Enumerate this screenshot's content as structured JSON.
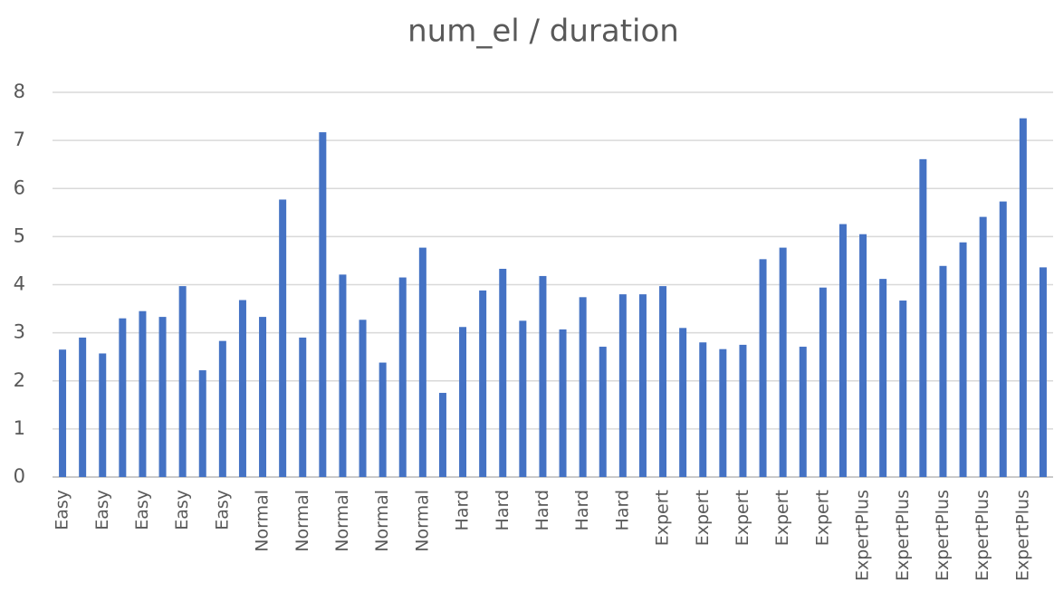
{
  "chart_data": {
    "type": "bar",
    "title": "num_el / duration",
    "categories": [
      "Easy",
      null,
      "Easy",
      null,
      "Easy",
      null,
      "Easy",
      null,
      "Easy",
      null,
      "Normal",
      null,
      "Normal",
      null,
      "Normal",
      null,
      "Normal",
      null,
      "Normal",
      null,
      "Hard",
      null,
      "Hard",
      null,
      "Hard",
      null,
      "Hard",
      null,
      "Hard",
      null,
      "Expert",
      null,
      "Expert",
      null,
      "Expert",
      null,
      "Expert",
      null,
      "Expert",
      null,
      "ExpertPlus",
      null,
      "ExpertPlus",
      null,
      "ExpertPlus",
      null,
      "ExpertPlus",
      null,
      "ExpertPlus",
      null
    ],
    "values": [
      2.65,
      2.9,
      2.57,
      3.3,
      3.45,
      3.33,
      3.97,
      2.22,
      2.83,
      3.68,
      3.33,
      5.77,
      2.9,
      7.17,
      4.21,
      3.27,
      2.38,
      4.15,
      4.77,
      1.75,
      3.12,
      3.88,
      4.33,
      3.25,
      4.18,
      3.07,
      3.74,
      2.71,
      3.8,
      3.8,
      3.97,
      3.1,
      2.8,
      2.66,
      2.75,
      4.53,
      4.77,
      2.71,
      3.94,
      5.26,
      5.05,
      4.12,
      3.67,
      6.61,
      4.39,
      4.88,
      5.41,
      5.73,
      7.46,
      4.36
    ],
    "color": "#4472c4",
    "ylim": [
      0,
      8
    ],
    "yticks": [
      0,
      1,
      2,
      3,
      4,
      5,
      6,
      7,
      8
    ],
    "grid": true
  }
}
